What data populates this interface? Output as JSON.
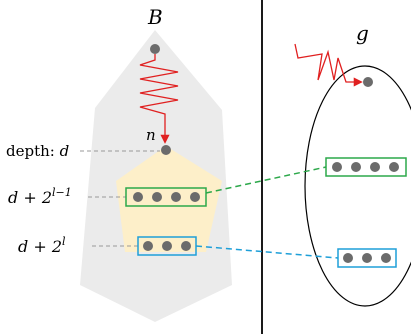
{
  "labels": {
    "tree_name": "B",
    "graph_name": "g",
    "node_name": "n",
    "depth_prefix": "depth: ",
    "depth_var": "d",
    "level_mid": "d + 2",
    "level_mid_exp": "l−1",
    "level_low": "d + 2",
    "level_low_exp": "l"
  },
  "colors": {
    "tree_fill": "#ebebeb",
    "subtree_fill": "#fdefc9",
    "node": "#6b6b6b",
    "green": "#2ca84a",
    "blue": "#1e9fd8",
    "red": "#e02020",
    "dashed_gray": "#9a9a9a"
  },
  "icons": {
    "path_zigzag": "red-zigzag-arrow"
  }
}
